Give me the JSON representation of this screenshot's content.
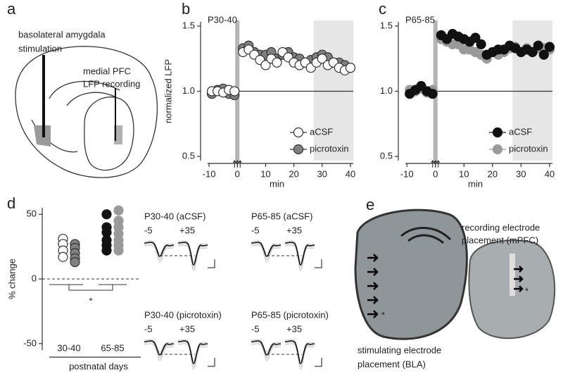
{
  "panel_letters": [
    "a",
    "b",
    "c",
    "d",
    "e"
  ],
  "schematic": {
    "stimulation_label": [
      "basolateral amygdala",
      "stimulation"
    ],
    "recording_label": [
      "medial PFC",
      "LFP recording"
    ]
  },
  "chart_data": [
    {
      "type": "scatter",
      "title": "P30-40",
      "y_label": "normalized LFP",
      "x_label": "min",
      "xlim": [
        -13,
        41
      ],
      "ylim": [
        0.5,
        1.5
      ],
      "xticks": [
        -10,
        0,
        10,
        20,
        30,
        40
      ],
      "yticks": [
        0.5,
        {
          "value": 1,
          "label": "1.0"
        },
        1.5
      ],
      "reference_line": 1,
      "stimulus_time": 0,
      "shaded": [
        27,
        41
      ],
      "legend": "lower-right",
      "x": [
        -9,
        -7,
        -5,
        -3,
        -1,
        2,
        4,
        6,
        8,
        10,
        12,
        14,
        16,
        18,
        20,
        22,
        24,
        26,
        28,
        30,
        32,
        34,
        36,
        38,
        40
      ],
      "series": [
        {
          "name": "aCSF",
          "color": "#ffffff",
          "edgecolor": "#333333",
          "values": [
            1.0,
            1.0,
            0.99,
            1.01,
            1.0,
            1.3,
            1.32,
            1.28,
            1.24,
            1.2,
            1.25,
            1.22,
            1.3,
            1.26,
            1.22,
            1.2,
            1.22,
            1.18,
            1.22,
            1.25,
            1.2,
            1.22,
            1.18,
            1.16,
            1.18
          ]
        },
        {
          "name": "picrotoxin",
          "color": "#808080",
          "edgecolor": "#333333",
          "values": [
            0.98,
            1.01,
            1.02,
            0.98,
            0.97,
            1.33,
            1.35,
            1.3,
            1.28,
            1.28,
            1.3,
            1.25,
            1.28,
            1.3,
            1.26,
            1.25,
            1.22,
            1.24,
            1.26,
            1.28,
            1.26,
            1.22,
            1.22,
            1.2,
            1.18
          ]
        }
      ]
    },
    {
      "type": "scatter",
      "title": "P65-85",
      "x_label": "min",
      "xlim": [
        -13,
        41
      ],
      "ylim": [
        0.5,
        1.5
      ],
      "xticks": [
        -10,
        0,
        10,
        20,
        30,
        40
      ],
      "yticks": [
        0.5,
        {
          "value": 1,
          "label": "1.0"
        },
        1.5
      ],
      "reference_line": 1,
      "stimulus_time": 0,
      "shaded": [
        27,
        41
      ],
      "legend": "lower-right",
      "x": [
        -9,
        -7,
        -5,
        -3,
        -1,
        2,
        4,
        6,
        8,
        10,
        12,
        14,
        16,
        18,
        20,
        22,
        24,
        26,
        28,
        30,
        32,
        34,
        36,
        38,
        40
      ],
      "series": [
        {
          "name": "aCSF",
          "color": "#111111",
          "edgecolor": "#111111",
          "values": [
            0.98,
            1.01,
            1.04,
            1.0,
            0.98,
            1.43,
            1.4,
            1.44,
            1.42,
            1.4,
            1.38,
            1.41,
            1.36,
            1.28,
            1.3,
            1.32,
            1.32,
            1.35,
            1.33,
            1.3,
            1.32,
            1.3,
            1.35,
            1.28,
            1.34
          ]
        },
        {
          "name": "picrotoxin",
          "color": "#9a9a9a",
          "edgecolor": "#9a9a9a",
          "values": [
            1.01,
            1.0,
            1.02,
            0.99,
            1.01,
            1.4,
            1.38,
            1.36,
            1.36,
            1.32,
            1.32,
            1.3,
            1.28,
            1.25,
            1.3,
            1.28,
            1.3,
            1.33,
            1.34,
            1.3,
            1.33,
            1.3,
            1.33,
            1.33,
            1.32
          ]
        }
      ]
    },
    {
      "type": "strip",
      "y_label": "% change",
      "x_label": "postnatal days",
      "ylim": [
        -55,
        55
      ],
      "yticks": [
        -50,
        0,
        50
      ],
      "reference_line": 0,
      "annotation": "*",
      "groups": [
        {
          "category": "30-40",
          "series": [
            {
              "color": "#ffffff",
              "edgecolor": "#333333",
              "values": [
                31,
                27,
                22,
                17
              ]
            },
            {
              "color": "#808080",
              "edgecolor": "#333333",
              "values": [
                27,
                24,
                20,
                16,
                13
              ]
            }
          ]
        },
        {
          "category": "65-85",
          "series": [
            {
              "color": "#111111",
              "edgecolor": "#111111",
              "values": [
                50,
                40,
                36,
                30,
                26,
                22
              ]
            },
            {
              "color": "#9a9a9a",
              "edgecolor": "#9a9a9a",
              "values": [
                53,
                45,
                40,
                35,
                30,
                26,
                22
              ]
            }
          ]
        }
      ]
    }
  ],
  "traces": [
    {
      "title": "P30-40 (aCSF)",
      "pre": "-5",
      "post": "+35"
    },
    {
      "title": "P65-85 (aCSF)",
      "pre": "-5",
      "post": "+35"
    },
    {
      "title": "P30-40 (picrotoxin)",
      "pre": "-5",
      "post": "+35"
    },
    {
      "title": "P65-85 (picrotoxin)",
      "pre": "-5",
      "post": "+35"
    }
  ],
  "histology": {
    "recording_label": [
      "recording electrode",
      "placement (mPFC)"
    ],
    "stimulating_label": [
      "stimulating electrode",
      "placement (BLA)"
    ],
    "asterisk": "*"
  }
}
